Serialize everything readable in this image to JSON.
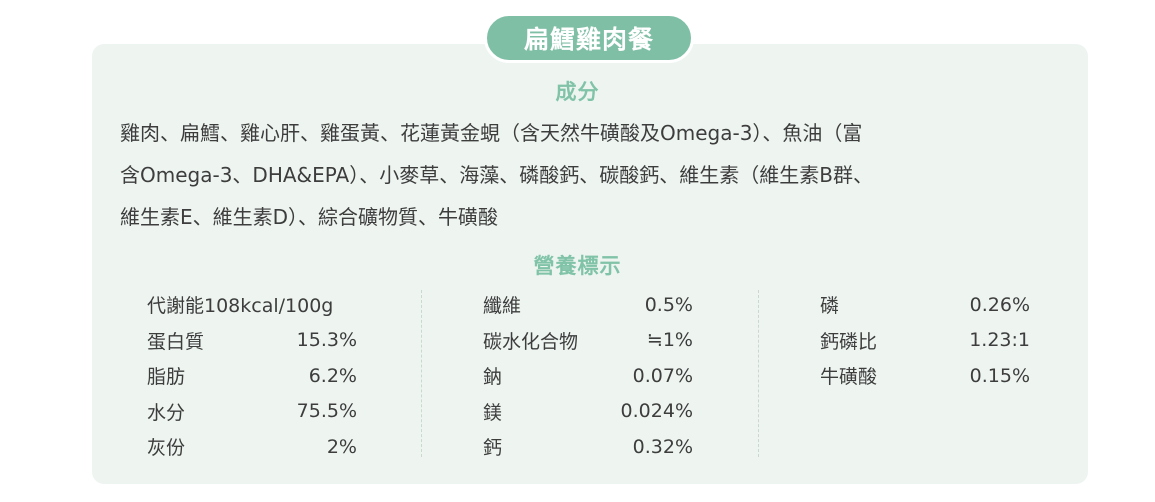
{
  "product": {
    "title": "扁鱈雞肉餐"
  },
  "ingredients": {
    "heading": "成分",
    "lines": [
      "雞肉、扁鱈、雞心肝、雞蛋黃、花蓮黃金蜆（含天然牛磺酸及Omega-3）、魚油（富",
      "含Omega-3、DHA&EPA）、小麥草、海藻、磷酸鈣、碳酸鈣、維生素（維生素B群、",
      "維生素E、維生素D）、綜合礦物質、牛磺酸"
    ]
  },
  "nutrition": {
    "heading": "營養標示",
    "columns": [
      [
        {
          "label": "代謝能108kcal/100g",
          "value": ""
        },
        {
          "label": "蛋白質",
          "value": "15.3%"
        },
        {
          "label": "脂肪",
          "value": "6.2%"
        },
        {
          "label": "水分",
          "value": "75.5%"
        },
        {
          "label": "灰份",
          "value": "2%"
        }
      ],
      [
        {
          "label": "纖維",
          "value": "0.5%"
        },
        {
          "label": "碳水化合物",
          "value": "≒1%"
        },
        {
          "label": "鈉",
          "value": "0.07%"
        },
        {
          "label": "鎂",
          "value": "0.024%"
        },
        {
          "label": "鈣",
          "value": "0.32%"
        }
      ],
      [
        {
          "label": "磷",
          "value": "0.26%"
        },
        {
          "label": "鈣磷比",
          "value": "1.23:1"
        },
        {
          "label": "牛磺酸",
          "value": "0.15%"
        }
      ]
    ]
  },
  "colors": {
    "accent": "#7fbfa6",
    "heading": "#80c3a8",
    "card_bg": "#eef5f1",
    "text": "#3d3d3d"
  }
}
